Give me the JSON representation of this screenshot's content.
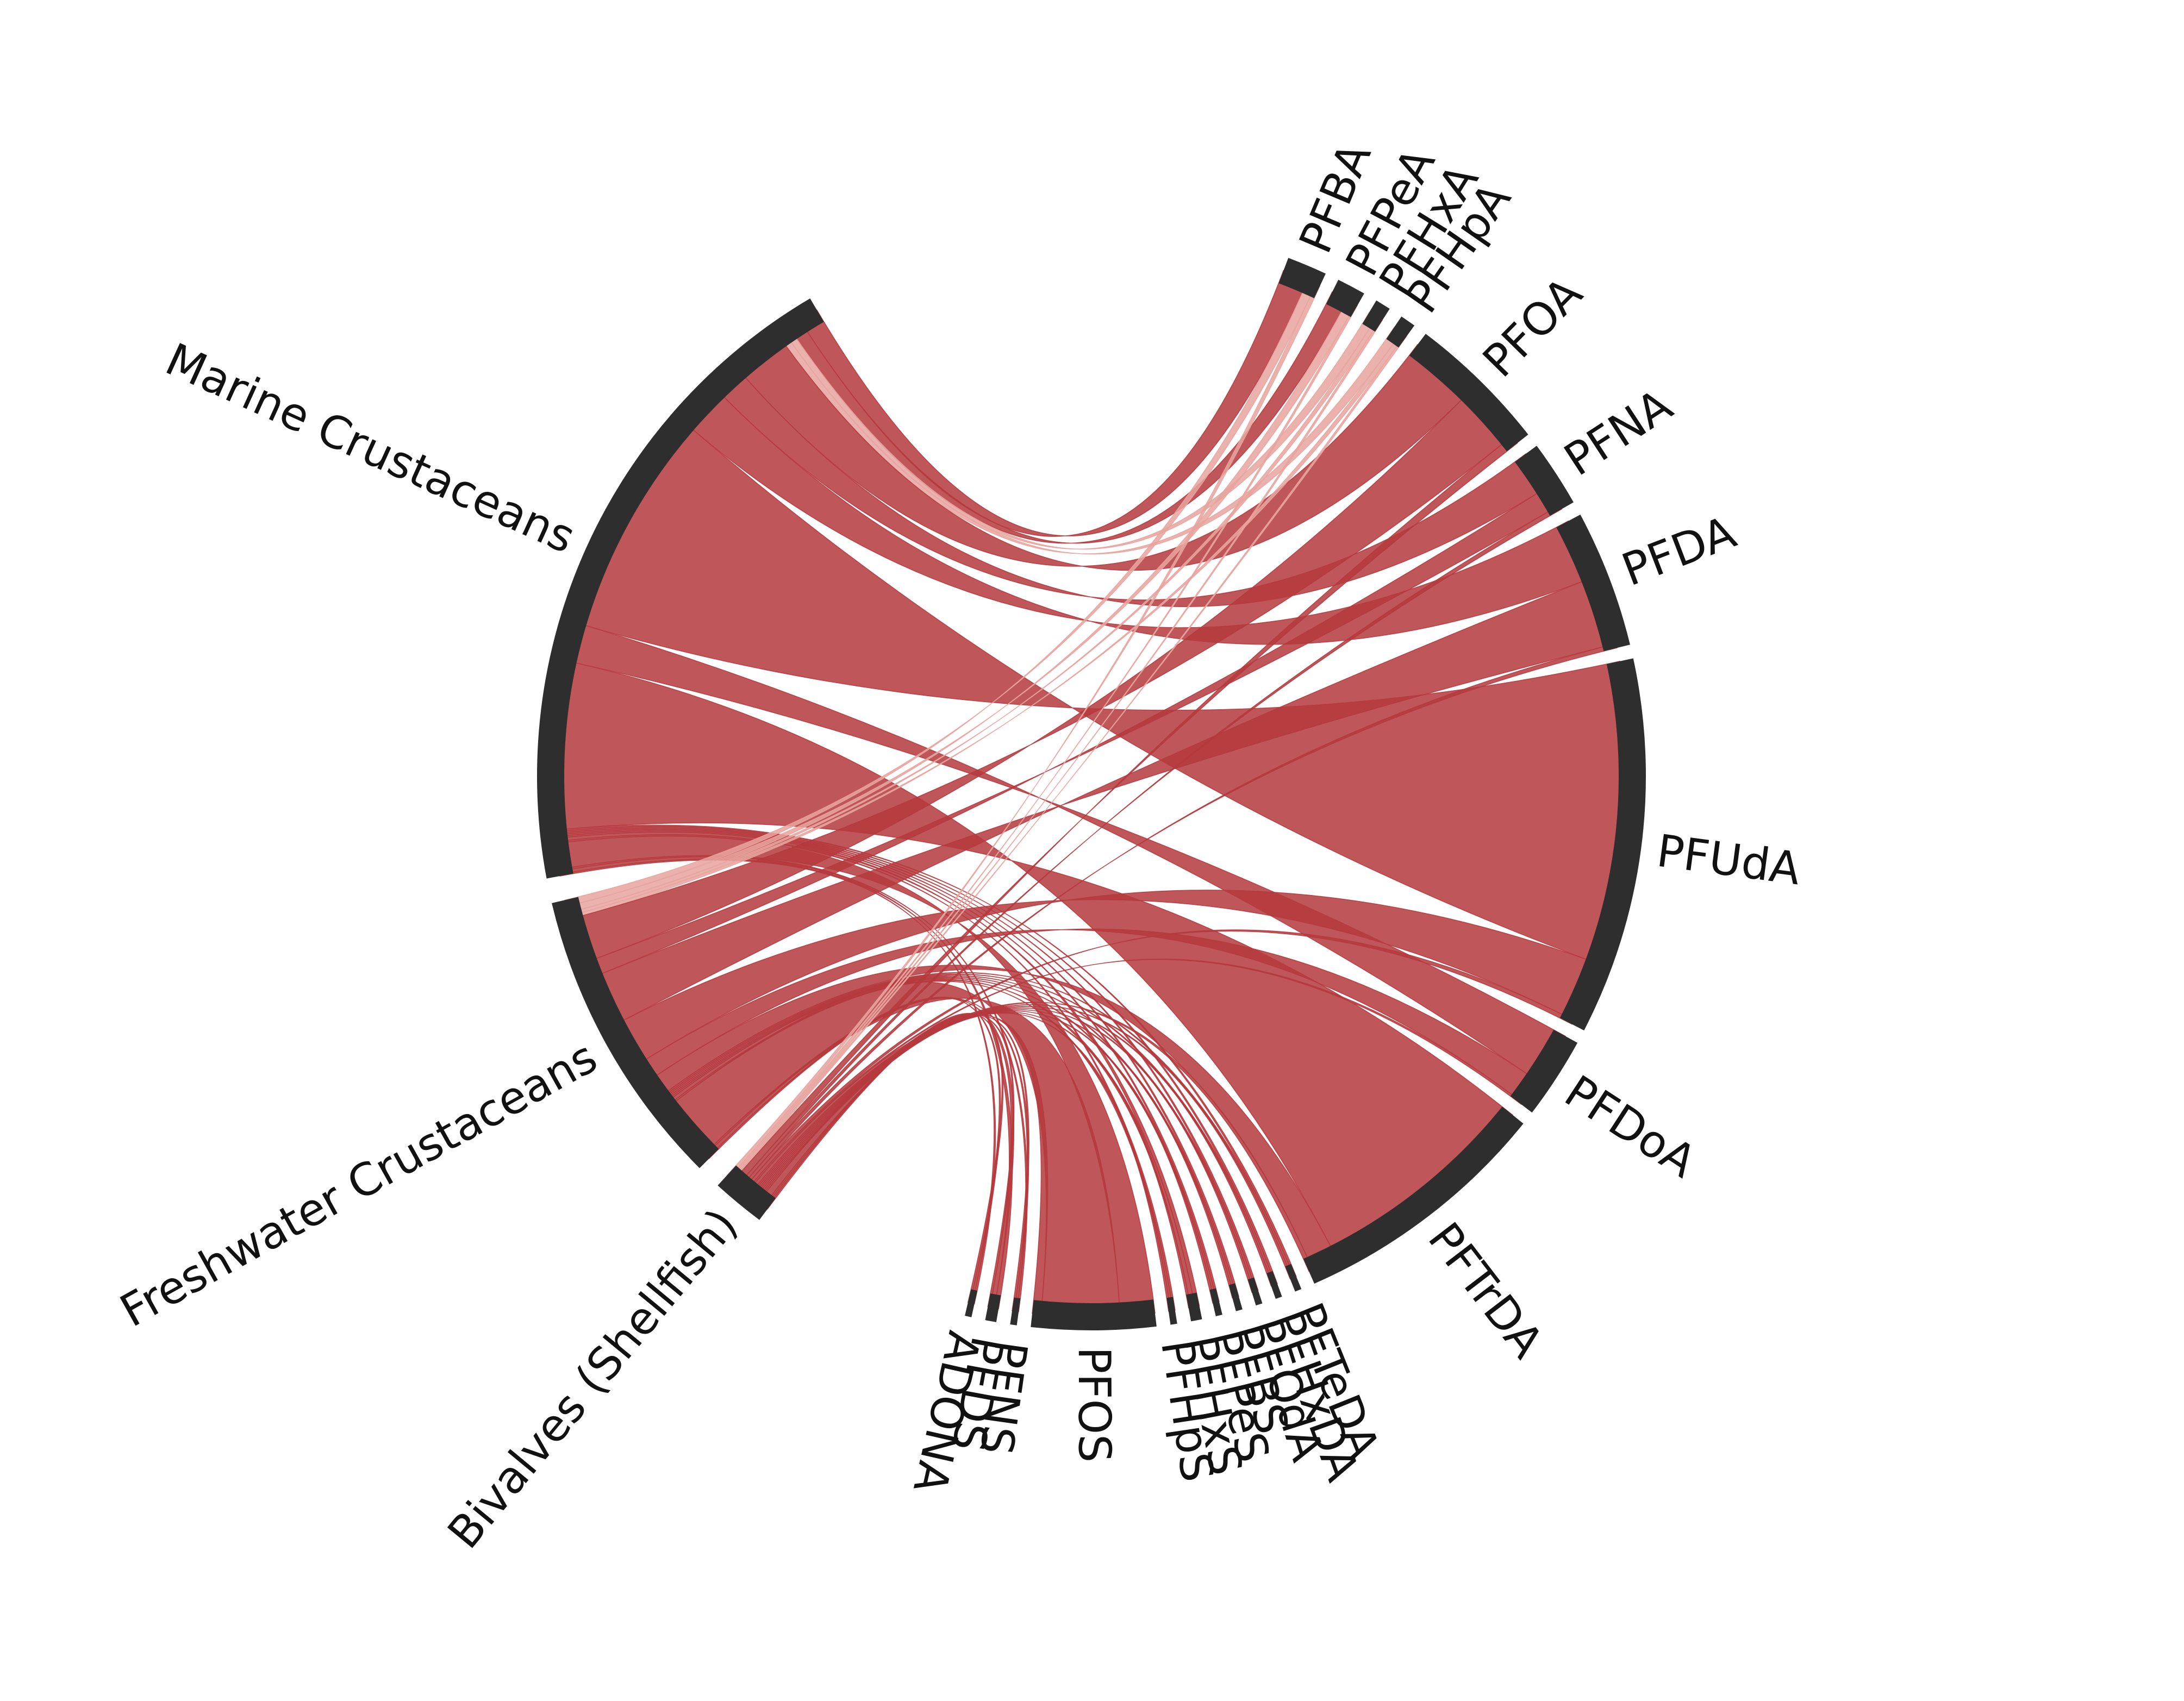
{
  "colors": {
    "ribbon": "#b53a3e",
    "ribbon_light": "#e8a49e",
    "node_arc": "#2e2e2e",
    "label": "#111111",
    "background": "#ffffff"
  },
  "chart_data": {
    "type": "chord",
    "title": "",
    "sources": [
      {
        "name": "Marine Crustaceans",
        "label": "Marine Crustaceans"
      },
      {
        "name": "Freshwater Crustaceans",
        "label": "Freshwater Crustaceans"
      },
      {
        "name": "Bivalves (Shellfish)",
        "label": "Bivalves (Shellfish)"
      }
    ],
    "targets": [
      {
        "name": "PFBA",
        "label": "PFBA"
      },
      {
        "name": "PFPeA",
        "label": "PFPeA"
      },
      {
        "name": "PFHxA",
        "label": "PFHxA"
      },
      {
        "name": "PFHpA",
        "label": "PFHpA"
      },
      {
        "name": "PFOA",
        "label": "PFOA"
      },
      {
        "name": "PFNA",
        "label": "PFNA"
      },
      {
        "name": "PFDA",
        "label": "PFDA"
      },
      {
        "name": "PFUdA",
        "label": "PFUdA"
      },
      {
        "name": "PFDoA",
        "label": "PFDoA"
      },
      {
        "name": "PFTrDA",
        "label": "PFTrDA"
      },
      {
        "name": "PFTeDA",
        "label": "PFTeDA"
      },
      {
        "name": "PFHxDA",
        "label": "PFHxDA"
      },
      {
        "name": "PFODA",
        "label": "PFOdA"
      },
      {
        "name": "PFBS",
        "label": "PFBS"
      },
      {
        "name": "PFPeS",
        "label": "PFPeS"
      },
      {
        "name": "PFHxS",
        "label": "PFHxS"
      },
      {
        "name": "PFHpS",
        "label": "PFHpS"
      },
      {
        "name": "PFOS",
        "label": "PFOS"
      },
      {
        "name": "PFNS",
        "label": "PFNS"
      },
      {
        "name": "PFDS",
        "label": "PFDS"
      },
      {
        "name": "ADONA",
        "label": "ADONA"
      }
    ],
    "flows": [
      {
        "source": "Marine Crustaceans",
        "target": "PFBA",
        "value": 0.6
      },
      {
        "source": "Marine Crustaceans",
        "target": "PFPeA",
        "value": 0.4
      },
      {
        "source": "Marine Crustaceans",
        "target": "PFHxA",
        "value": 0.2
      },
      {
        "source": "Marine Crustaceans",
        "target": "PFHpA",
        "value": 0.2
      },
      {
        "source": "Marine Crustaceans",
        "target": "PFOA",
        "value": 1.6
      },
      {
        "source": "Marine Crustaceans",
        "target": "PFNA",
        "value": 0.9
      },
      {
        "source": "Marine Crustaceans",
        "target": "PFDA",
        "value": 1.4
      },
      {
        "source": "Marine Crustaceans",
        "target": "PFUdA",
        "value": 7.0
      },
      {
        "source": "Marine Crustaceans",
        "target": "PFDoA",
        "value": 1.2
      },
      {
        "source": "Marine Crustaceans",
        "target": "PFTrDA",
        "value": 5.2
      },
      {
        "source": "Marine Crustaceans",
        "target": "PFTeDA",
        "value": 0.05
      },
      {
        "source": "Marine Crustaceans",
        "target": "PFHxDA",
        "value": 0.05
      },
      {
        "source": "Marine Crustaceans",
        "target": "PFODA",
        "value": 0.05
      },
      {
        "source": "Marine Crustaceans",
        "target": "PFBS",
        "value": 0.05
      },
      {
        "source": "Marine Crustaceans",
        "target": "PFPeS",
        "value": 0.05
      },
      {
        "source": "Marine Crustaceans",
        "target": "PFHxS",
        "value": 0.1
      },
      {
        "source": "Marine Crustaceans",
        "target": "PFHpS",
        "value": 0.05
      },
      {
        "source": "Marine Crustaceans",
        "target": "PFOS",
        "value": 0.8
      },
      {
        "source": "Marine Crustaceans",
        "target": "PFNS",
        "value": 0.05
      },
      {
        "source": "Marine Crustaceans",
        "target": "PFDS",
        "value": 0.1
      },
      {
        "source": "Marine Crustaceans",
        "target": "ADONA",
        "value": 0.05
      },
      {
        "source": "Freshwater Crustaceans",
        "target": "PFBA",
        "value": 0.2
      },
      {
        "source": "Freshwater Crustaceans",
        "target": "PFPeA",
        "value": 0.2
      },
      {
        "source": "Freshwater Crustaceans",
        "target": "PFHxA",
        "value": 0.1
      },
      {
        "source": "Freshwater Crustaceans",
        "target": "PFHpA",
        "value": 0.1
      },
      {
        "source": "Freshwater Crustaceans",
        "target": "PFOA",
        "value": 1.4
      },
      {
        "source": "Freshwater Crustaceans",
        "target": "PFNA",
        "value": 0.5
      },
      {
        "source": "Freshwater Crustaceans",
        "target": "PFDA",
        "value": 1.6
      },
      {
        "source": "Freshwater Crustaceans",
        "target": "PFUdA",
        "value": 1.4
      },
      {
        "source": "Freshwater Crustaceans",
        "target": "PFDoA",
        "value": 0.6
      },
      {
        "source": "Freshwater Crustaceans",
        "target": "PFTrDA",
        "value": 0.6
      },
      {
        "source": "Freshwater Crustaceans",
        "target": "PFTeDA",
        "value": 0.05
      },
      {
        "source": "Freshwater Crustaceans",
        "target": "PFHxDA",
        "value": 0.05
      },
      {
        "source": "Freshwater Crustaceans",
        "target": "PFODA",
        "value": 0.05
      },
      {
        "source": "Freshwater Crustaceans",
        "target": "PFBS",
        "value": 0.05
      },
      {
        "source": "Freshwater Crustaceans",
        "target": "PFPeS",
        "value": 0.05
      },
      {
        "source": "Freshwater Crustaceans",
        "target": "PFHxS",
        "value": 0.1
      },
      {
        "source": "Freshwater Crustaceans",
        "target": "PFHpS",
        "value": 0.05
      },
      {
        "source": "Freshwater Crustaceans",
        "target": "PFOS",
        "value": 1.8
      },
      {
        "source": "Freshwater Crustaceans",
        "target": "PFNS",
        "value": 0.05
      },
      {
        "source": "Freshwater Crustaceans",
        "target": "PFDS",
        "value": 0.1
      },
      {
        "source": "Freshwater Crustaceans",
        "target": "ADONA",
        "value": 0.05
      },
      {
        "source": "Bivalves (Shellfish)",
        "target": "PFBA",
        "value": 0.1
      },
      {
        "source": "Bivalves (Shellfish)",
        "target": "PFPeA",
        "value": 0.05
      },
      {
        "source": "Bivalves (Shellfish)",
        "target": "PFHxA",
        "value": 0.05
      },
      {
        "source": "Bivalves (Shellfish)",
        "target": "PFHpA",
        "value": 0.05
      },
      {
        "source": "Bivalves (Shellfish)",
        "target": "PFOA",
        "value": 0.2
      },
      {
        "source": "Bivalves (Shellfish)",
        "target": "PFNA",
        "value": 0.1
      },
      {
        "source": "Bivalves (Shellfish)",
        "target": "PFDA",
        "value": 0.1
      },
      {
        "source": "Bivalves (Shellfish)",
        "target": "PFUdA",
        "value": 0.1
      },
      {
        "source": "Bivalves (Shellfish)",
        "target": "PFDoA",
        "value": 0.05
      },
      {
        "source": "Bivalves (Shellfish)",
        "target": "PFTrDA",
        "value": 0.1
      },
      {
        "source": "Bivalves (Shellfish)",
        "target": "PFTeDA",
        "value": 0.05
      },
      {
        "source": "Bivalves (Shellfish)",
        "target": "PFHxDA",
        "value": 0.05
      },
      {
        "source": "Bivalves (Shellfish)",
        "target": "PFODA",
        "value": 0.05
      },
      {
        "source": "Bivalves (Shellfish)",
        "target": "PFBS",
        "value": 0.05
      },
      {
        "source": "Bivalves (Shellfish)",
        "target": "PFPeS",
        "value": 0.05
      },
      {
        "source": "Bivalves (Shellfish)",
        "target": "PFHxS",
        "value": 0.05
      },
      {
        "source": "Bivalves (Shellfish)",
        "target": "PFHpS",
        "value": 0.05
      },
      {
        "source": "Bivalves (Shellfish)",
        "target": "PFOS",
        "value": 0.2
      },
      {
        "source": "Bivalves (Shellfish)",
        "target": "PFNS",
        "value": 0.05
      },
      {
        "source": "Bivalves (Shellfish)",
        "target": "PFDS",
        "value": 0.05
      },
      {
        "source": "Bivalves (Shellfish)",
        "target": "ADONA",
        "value": 0.05
      }
    ]
  }
}
